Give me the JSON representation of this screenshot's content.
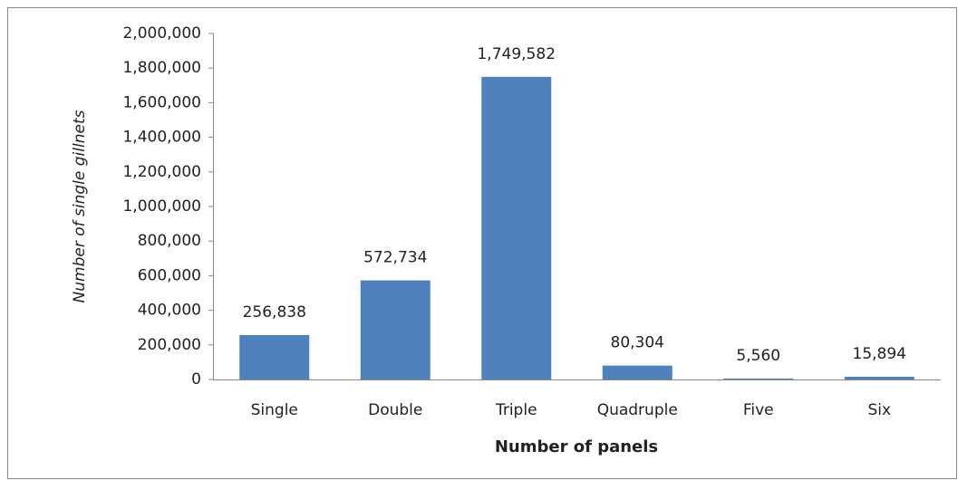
{
  "chart_data": {
    "type": "bar",
    "x_label": "Number of panels",
    "y_label": "Number of single gillnets",
    "categories": [
      "Single",
      "Double",
      "Triple",
      "Quadruple",
      "Five",
      "Six"
    ],
    "values": [
      256838,
      572734,
      1749582,
      80304,
      5560,
      15894
    ],
    "value_labels": [
      "256,838",
      "572,734",
      "1,749,582",
      "80,304",
      "5,560",
      "15,894"
    ],
    "color": "#4f81bd",
    "ylim": [
      0,
      2000000
    ],
    "yticks": [
      0,
      {
        "value": 200000,
        "label": "200,000"
      },
      {
        "value": 400000,
        "label": "400,000"
      },
      {
        "value": 600000,
        "label": "600,000"
      },
      {
        "value": 800000,
        "label": "800,000"
      },
      {
        "value": 1000000,
        "label": "1,000,000"
      },
      {
        "value": 1200000,
        "label": "1,200,000"
      },
      {
        "value": 1400000,
        "label": "1,400,000"
      },
      {
        "value": 1600000,
        "label": "1,600,000"
      },
      {
        "value": 1800000,
        "label": "1,800,000"
      },
      {
        "value": 2000000,
        "label": "2,000,000"
      }
    ],
    "grid": false
  }
}
